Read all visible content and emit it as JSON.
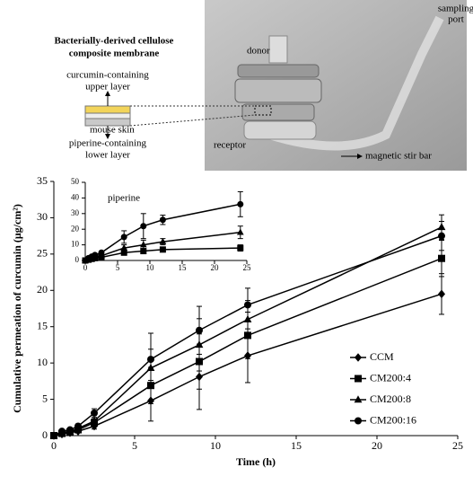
{
  "diagram": {
    "sampling_port": [
      "sampling",
      "port"
    ],
    "membrane_title": [
      "Bacterially-derived cellulose",
      "composite membrane"
    ],
    "upper_layer": [
      "curcumin-containing",
      "upper layer"
    ],
    "mouse_skin": "mouse skin",
    "lower_layer": [
      "piperine-containing",
      "lower layer"
    ],
    "donor": "donor",
    "receptor": "receptor",
    "stir_bar": "magnetic stir bar"
  },
  "chart_data": [
    {
      "type": "line",
      "xlabel": "Time (h)",
      "ylabel": "Cumulative permeation of curcumin (μg/cm²)",
      "x": [
        0,
        0.5,
        1,
        1.5,
        2.5,
        6,
        9,
        12,
        24
      ],
      "xlim": [
        0,
        25
      ],
      "xticks": [
        0,
        5,
        10,
        15,
        20,
        25
      ],
      "ylim": [
        0,
        35
      ],
      "yticks": [
        0,
        5,
        10,
        15,
        20,
        25,
        30,
        35
      ],
      "legend": "center right",
      "series": [
        {
          "name": "CCM",
          "color": "#000000",
          "marker": "diamond",
          "values": [
            0,
            0.2,
            0.4,
            0.6,
            1.3,
            4.8,
            8.1,
            11,
            19.5
          ],
          "errors": [
            0,
            0.1,
            0.1,
            0.2,
            0.4,
            2.8,
            4.5,
            3.7,
            2.8
          ]
        },
        {
          "name": "CM200:4",
          "color": "#000000",
          "marker": "square",
          "values": [
            0,
            0.3,
            0.5,
            0.8,
            1.8,
            6.9,
            10.2,
            13.8,
            24.4
          ],
          "errors": [
            0,
            0.1,
            0.2,
            0.2,
            0.5,
            2.5,
            3.8,
            3.2,
            2.5
          ]
        },
        {
          "name": "CM200:8",
          "color": "#000000",
          "marker": "triangle",
          "values": [
            0,
            0.4,
            0.6,
            1,
            2,
            9.3,
            12.5,
            16,
            28.7
          ],
          "errors": [
            0,
            0.1,
            0.2,
            0.3,
            0.5,
            2.6,
            3.6,
            2.6,
            1.7
          ]
        },
        {
          "name": "CM200:16",
          "color": "#000000",
          "marker": "circle",
          "values": [
            0,
            0.6,
            0.8,
            1.3,
            3.1,
            10.5,
            14.5,
            18,
            27.5
          ],
          "errors": [
            0,
            0.2,
            0.2,
            0.3,
            0.6,
            3.6,
            3.3,
            2.3,
            2
          ]
        }
      ]
    },
    {
      "type": "line",
      "title": "piperine",
      "x": [
        0,
        0.5,
        1,
        1.5,
        2.5,
        6,
        9,
        12,
        24
      ],
      "xlim": [
        0,
        25
      ],
      "xticks": [
        0,
        5,
        10,
        15,
        20,
        25
      ],
      "ylim": [
        0,
        50
      ],
      "yticks": [
        0,
        10,
        20,
        30,
        40,
        50
      ],
      "series": [
        {
          "name": "CM200:4",
          "color": "#000000",
          "marker": "square",
          "values": [
            0,
            0.5,
            1,
            1.5,
            2,
            5,
            6,
            7,
            8
          ],
          "errors": [
            0,
            0.2,
            0.3,
            0.3,
            0.5,
            1,
            1.2,
            1.2,
            2
          ]
        },
        {
          "name": "CM200:8",
          "color": "#000000",
          "marker": "triangle",
          "values": [
            0,
            0.8,
            1.5,
            2,
            3,
            8,
            10,
            12,
            18
          ],
          "errors": [
            0,
            0.3,
            0.4,
            0.5,
            0.7,
            2,
            3,
            2,
            4
          ]
        },
        {
          "name": "CM200:16",
          "color": "#000000",
          "marker": "circle",
          "values": [
            0,
            1.5,
            2.5,
            3.5,
            5,
            15,
            22,
            26,
            36
          ],
          "errors": [
            0,
            0.5,
            0.6,
            0.8,
            1,
            4,
            8,
            3,
            8
          ]
        }
      ]
    }
  ]
}
